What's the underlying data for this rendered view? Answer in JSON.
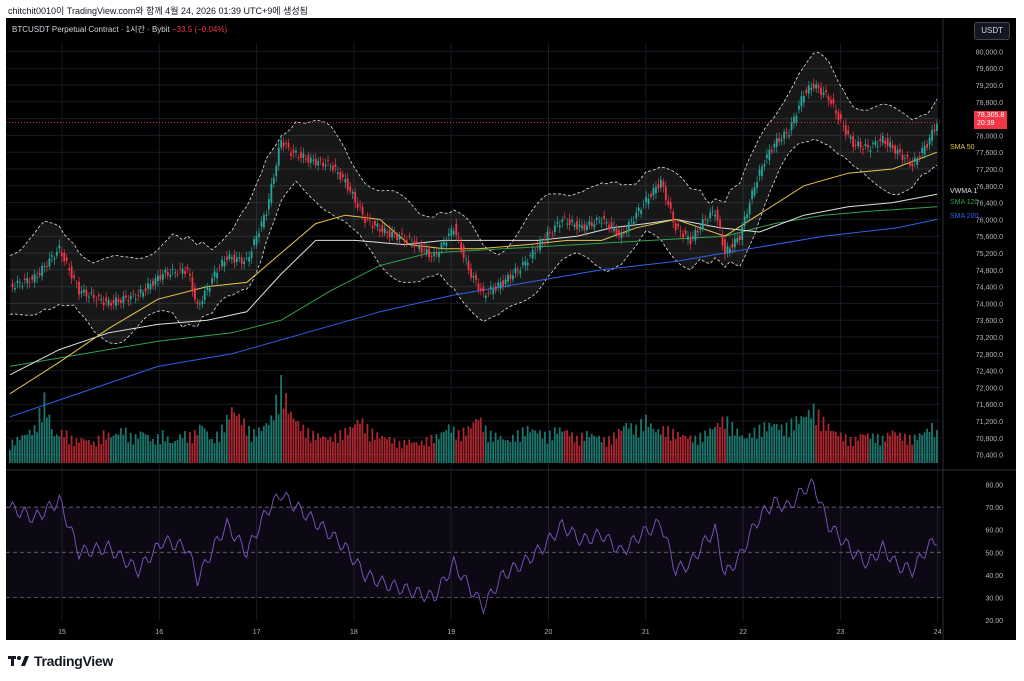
{
  "header": {
    "text": "chitchit0010이 TradingView.com와 함께 4월 24, 2026 01:39 UTC+9에 생성됨"
  },
  "chart_title": {
    "symbol": "BTCUSDT Perpetual Contract · 1시간 · Bybit",
    "change": "−33.5 (−0.04%)"
  },
  "currency_button": "USDT",
  "price_tag": {
    "price": "78,305.8",
    "time": "20:39"
  },
  "indicator_labels": [
    {
      "text": "SMA 50",
      "color": "#e8c64a"
    },
    {
      "text": "VWMA 1",
      "color": "#e0e0e0"
    },
    {
      "text": "SMA 120",
      "color": "#2fa24a"
    },
    {
      "text": "SMA 200",
      "color": "#2d62ea"
    }
  ],
  "footer": {
    "brand": "TradingView"
  },
  "colors": {
    "up": "#26a69a",
    "down": "#f23645",
    "sma50": "#e8c64a",
    "vwma": "#e0e0e0",
    "sma120": "#2fa24a",
    "sma200": "#2d62ea",
    "rsi": "#7e57c2",
    "bb": "#e0e0e0"
  },
  "chart_data": [
    {
      "type": "candlestick",
      "title": "BTCUSDT Perpetual Contract · 1시간 · Bybit",
      "x_ticks": [
        "15",
        "16",
        "17",
        "18",
        "19",
        "20",
        "21",
        "22",
        "23",
        "24"
      ],
      "y_ticks": [
        "80,000.0",
        "79,600.0",
        "79,200.0",
        "78,800.0",
        "78,400.0",
        "78,000.0",
        "77,600.0",
        "77,200.0",
        "76,800.0",
        "76,400.0",
        "76,000.0",
        "75,600.0",
        "75,200.0",
        "74,800.0",
        "74,400.0",
        "74,000.0",
        "73,600.0",
        "73,200.0",
        "72,800.0",
        "72,400.0",
        "72,000.0",
        "71,600.0",
        "71,200.0",
        "70,800.0",
        "70,400.0"
      ],
      "ylim": [
        70200,
        80200
      ],
      "last_price": 78305.8,
      "close_path": [
        [
          0,
          74400
        ],
        [
          10,
          74600
        ],
        [
          20,
          75300
        ],
        [
          28,
          74300
        ],
        [
          40,
          74000
        ],
        [
          52,
          74200
        ],
        [
          62,
          74700
        ],
        [
          72,
          74800
        ],
        [
          76,
          73900
        ],
        [
          84,
          74800
        ],
        [
          88,
          75100
        ],
        [
          96,
          75000
        ],
        [
          104,
          76200
        ],
        [
          110,
          77900
        ],
        [
          114,
          77600
        ],
        [
          122,
          77400
        ],
        [
          130,
          77300
        ],
        [
          136,
          76900
        ],
        [
          144,
          76000
        ],
        [
          152,
          75700
        ],
        [
          162,
          75500
        ],
        [
          172,
          75100
        ],
        [
          180,
          75800
        ],
        [
          186,
          74800
        ],
        [
          192,
          74200
        ],
        [
          200,
          74500
        ],
        [
          208,
          74900
        ],
        [
          216,
          75500
        ],
        [
          224,
          76000
        ],
        [
          232,
          75800
        ],
        [
          240,
          76000
        ],
        [
          248,
          75600
        ],
        [
          256,
          76300
        ],
        [
          264,
          76900
        ],
        [
          270,
          75800
        ],
        [
          276,
          75500
        ],
        [
          282,
          76000
        ],
        [
          286,
          76200
        ],
        [
          290,
          75200
        ],
        [
          296,
          75600
        ],
        [
          302,
          76800
        ],
        [
          306,
          77400
        ],
        [
          310,
          77800
        ],
        [
          316,
          78100
        ],
        [
          322,
          79000
        ],
        [
          326,
          79200
        ],
        [
          332,
          78900
        ],
        [
          338,
          78200
        ],
        [
          342,
          77800
        ],
        [
          348,
          77700
        ],
        [
          354,
          77900
        ],
        [
          360,
          77600
        ],
        [
          366,
          77300
        ],
        [
          372,
          77800
        ],
        [
          376,
          78300
        ]
      ],
      "sma50_path": [
        [
          0,
          71850
        ],
        [
          20,
          72600
        ],
        [
          40,
          73400
        ],
        [
          60,
          74100
        ],
        [
          80,
          74400
        ],
        [
          96,
          74500
        ],
        [
          110,
          75200
        ],
        [
          124,
          75900
        ],
        [
          136,
          76100
        ],
        [
          150,
          76000
        ],
        [
          162,
          75400
        ],
        [
          176,
          75300
        ],
        [
          190,
          75300
        ],
        [
          210,
          75400
        ],
        [
          226,
          75500
        ],
        [
          240,
          75500
        ],
        [
          254,
          75800
        ],
        [
          270,
          76000
        ],
        [
          290,
          75600
        ],
        [
          306,
          76200
        ],
        [
          322,
          76800
        ],
        [
          340,
          77100
        ],
        [
          358,
          77200
        ],
        [
          376,
          77600
        ]
      ],
      "vwma_path": [
        [
          0,
          72300
        ],
        [
          20,
          72900
        ],
        [
          40,
          73300
        ],
        [
          60,
          73500
        ],
        [
          80,
          73600
        ],
        [
          96,
          73800
        ],
        [
          110,
          74700
        ],
        [
          124,
          75500
        ],
        [
          140,
          75500
        ],
        [
          160,
          75400
        ],
        [
          176,
          75500
        ],
        [
          196,
          75500
        ],
        [
          214,
          75500
        ],
        [
          230,
          75600
        ],
        [
          244,
          75800
        ],
        [
          258,
          75900
        ],
        [
          270,
          76000
        ],
        [
          288,
          75800
        ],
        [
          304,
          75700
        ],
        [
          322,
          76100
        ],
        [
          340,
          76300
        ],
        [
          358,
          76400
        ],
        [
          376,
          76600
        ]
      ],
      "sma120_path": [
        [
          0,
          72500
        ],
        [
          30,
          72800
        ],
        [
          60,
          73100
        ],
        [
          90,
          73300
        ],
        [
          110,
          73600
        ],
        [
          130,
          74300
        ],
        [
          150,
          74900
        ],
        [
          170,
          75200
        ],
        [
          200,
          75300
        ],
        [
          230,
          75400
        ],
        [
          260,
          75500
        ],
        [
          290,
          75600
        ],
        [
          310,
          75900
        ],
        [
          330,
          76100
        ],
        [
          350,
          76200
        ],
        [
          376,
          76300
        ]
      ],
      "sma200_path": [
        [
          0,
          71300
        ],
        [
          30,
          71900
        ],
        [
          60,
          72500
        ],
        [
          90,
          72800
        ],
        [
          120,
          73300
        ],
        [
          150,
          73800
        ],
        [
          180,
          74200
        ],
        [
          210,
          74500
        ],
        [
          240,
          74800
        ],
        [
          270,
          75000
        ],
        [
          300,
          75300
        ],
        [
          330,
          75600
        ],
        [
          360,
          75800
        ],
        [
          376,
          76000
        ]
      ],
      "rsi": {
        "yticks": [
          "80.00",
          "70.00",
          "60.00",
          "50.00",
          "40.00",
          "30.00",
          "20.00"
        ],
        "ylim": [
          20,
          82
        ],
        "bands": [
          70,
          50,
          30
        ],
        "path": [
          [
            0,
            70
          ],
          [
            10,
            65
          ],
          [
            20,
            73
          ],
          [
            28,
            50
          ],
          [
            40,
            52
          ],
          [
            52,
            42
          ],
          [
            62,
            55
          ],
          [
            72,
            52
          ],
          [
            76,
            38
          ],
          [
            84,
            55
          ],
          [
            88,
            62
          ],
          [
            96,
            50
          ],
          [
            104,
            68
          ],
          [
            110,
            76
          ],
          [
            114,
            72
          ],
          [
            122,
            65
          ],
          [
            130,
            58
          ],
          [
            136,
            52
          ],
          [
            144,
            40
          ],
          [
            152,
            36
          ],
          [
            162,
            33
          ],
          [
            172,
            30
          ],
          [
            180,
            45
          ],
          [
            186,
            35
          ],
          [
            192,
            26
          ],
          [
            200,
            40
          ],
          [
            208,
            45
          ],
          [
            216,
            52
          ],
          [
            224,
            62
          ],
          [
            232,
            55
          ],
          [
            240,
            58
          ],
          [
            248,
            50
          ],
          [
            256,
            58
          ],
          [
            264,
            63
          ],
          [
            270,
            42
          ],
          [
            276,
            45
          ],
          [
            282,
            55
          ],
          [
            286,
            60
          ],
          [
            290,
            40
          ],
          [
            296,
            48
          ],
          [
            302,
            62
          ],
          [
            306,
            68
          ],
          [
            310,
            72
          ],
          [
            316,
            70
          ],
          [
            322,
            78
          ],
          [
            326,
            80
          ],
          [
            332,
            62
          ],
          [
            338,
            55
          ],
          [
            342,
            50
          ],
          [
            348,
            45
          ],
          [
            354,
            52
          ],
          [
            360,
            44
          ],
          [
            366,
            42
          ],
          [
            372,
            52
          ],
          [
            376,
            56
          ]
        ]
      },
      "volume": [
        [
          0,
          40
        ],
        [
          5,
          55
        ],
        [
          10,
          70
        ],
        [
          14,
          130
        ],
        [
          18,
          55
        ],
        [
          22,
          65
        ],
        [
          26,
          45
        ],
        [
          30,
          50
        ],
        [
          34,
          40
        ],
        [
          38,
          60
        ],
        [
          42,
          55
        ],
        [
          46,
          70
        ],
        [
          50,
          50
        ],
        [
          54,
          65
        ],
        [
          58,
          45
        ],
        [
          62,
          60
        ],
        [
          66,
          40
        ],
        [
          70,
          60
        ],
        [
          74,
          55
        ],
        [
          78,
          80
        ],
        [
          82,
          45
        ],
        [
          86,
          70
        ],
        [
          90,
          110
        ],
        [
          94,
          90
        ],
        [
          98,
          60
        ],
        [
          102,
          70
        ],
        [
          106,
          90
        ],
        [
          110,
          160
        ],
        [
          114,
          100
        ],
        [
          118,
          75
        ],
        [
          122,
          60
        ],
        [
          126,
          55
        ],
        [
          130,
          50
        ],
        [
          134,
          60
        ],
        [
          138,
          70
        ],
        [
          142,
          90
        ],
        [
          146,
          65
        ],
        [
          150,
          55
        ],
        [
          154,
          50
        ],
        [
          158,
          40
        ],
        [
          162,
          45
        ],
        [
          166,
          40
        ],
        [
          170,
          50
        ],
        [
          174,
          55
        ],
        [
          178,
          75
        ],
        [
          182,
          60
        ],
        [
          186,
          70
        ],
        [
          190,
          95
        ],
        [
          194,
          60
        ],
        [
          198,
          55
        ],
        [
          202,
          45
        ],
        [
          206,
          60
        ],
        [
          210,
          70
        ],
        [
          214,
          65
        ],
        [
          218,
          55
        ],
        [
          222,
          70
        ],
        [
          226,
          65
        ],
        [
          230,
          50
        ],
        [
          234,
          60
        ],
        [
          238,
          55
        ],
        [
          242,
          45
        ],
        [
          246,
          60
        ],
        [
          250,
          80
        ],
        [
          254,
          70
        ],
        [
          258,
          90
        ],
        [
          262,
          65
        ],
        [
          266,
          70
        ],
        [
          270,
          60
        ],
        [
          274,
          55
        ],
        [
          278,
          50
        ],
        [
          282,
          60
        ],
        [
          286,
          75
        ],
        [
          290,
          90
        ],
        [
          294,
          70
        ],
        [
          298,
          50
        ],
        [
          302,
          65
        ],
        [
          306,
          75
        ],
        [
          310,
          80
        ],
        [
          314,
          70
        ],
        [
          318,
          85
        ],
        [
          322,
          95
        ],
        [
          326,
          110
        ],
        [
          330,
          85
        ],
        [
          334,
          65
        ],
        [
          338,
          55
        ],
        [
          342,
          45
        ],
        [
          346,
          60
        ],
        [
          350,
          55
        ],
        [
          354,
          50
        ],
        [
          358,
          65
        ],
        [
          362,
          55
        ],
        [
          366,
          50
        ],
        [
          370,
          60
        ],
        [
          374,
          75
        ],
        [
          376,
          60
        ]
      ]
    }
  ]
}
